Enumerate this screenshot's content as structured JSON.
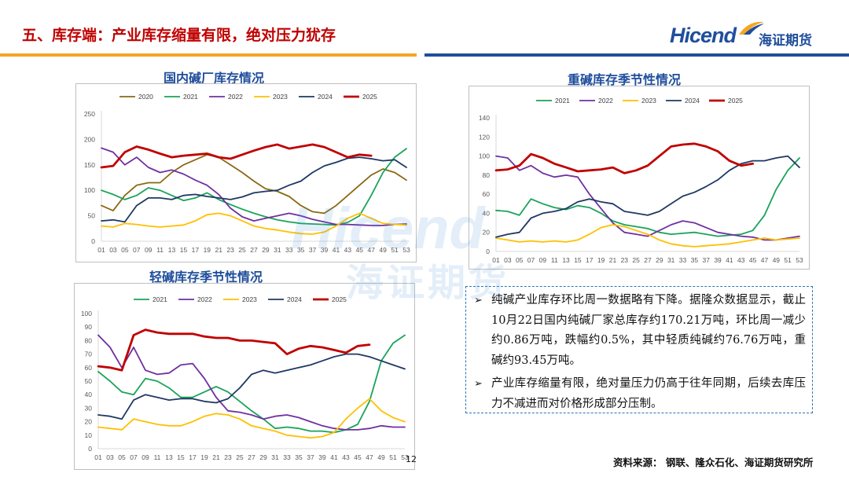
{
  "header": {
    "title": "五、库存端：产业库存缩量有限，绝对压力犹存",
    "logo_en": "Hicend",
    "logo_cn": "海证期货",
    "colors": {
      "title": "#c00000",
      "brand": "#1f4e9c",
      "band_orange": "#f5a623",
      "band_blue": "#1f4e9c"
    }
  },
  "watermark": {
    "en": "Hicend",
    "cn": "海证期货"
  },
  "text_panel": {
    "bullets": [
      "纯碱产业库存环比周一数据略有下降。据隆众数据显示，截止10月22日国内纯碱厂家总库存约170.21万吨，环比周一减少约0.86万吨，跌幅约0.5%，其中轻质纯碱约76.76万吨，重碱约93.45万吨。",
      "产业库存缩量有限，绝对量压力仍高于往年同期，后续去库压力不减进而对价格形成部分压制。"
    ]
  },
  "footer": {
    "source": "资料来源：  钢联、隆众石化、海证期货研究所",
    "page": "12"
  },
  "chart_data": [
    {
      "id": "domestic",
      "type": "line",
      "title": "国内碱厂库存情况",
      "x": [
        1,
        3,
        5,
        7,
        9,
        11,
        13,
        15,
        17,
        19,
        21,
        23,
        25,
        27,
        29,
        31,
        33,
        35,
        37,
        39,
        41,
        43,
        45,
        47,
        49,
        51,
        53
      ],
      "x_ticks": [
        "01",
        "03",
        "05",
        "07",
        "09",
        "11",
        "13",
        "15",
        "17",
        "19",
        "21",
        "23",
        "25",
        "27",
        "29",
        "31",
        "33",
        "35",
        "37",
        "39",
        "41",
        "43",
        "45",
        "47",
        "49",
        "51",
        "53"
      ],
      "ylim": [
        0,
        250
      ],
      "y_ticks": [
        0,
        50,
        100,
        150,
        200,
        250
      ],
      "series": [
        {
          "name": "2020",
          "color": "#8b6914",
          "values": [
            70,
            60,
            90,
            110,
            115,
            115,
            135,
            150,
            160,
            170,
            165,
            150,
            135,
            118,
            103,
            98,
            88,
            70,
            58,
            55,
            70,
            90,
            110,
            130,
            142,
            135,
            120
          ]
        },
        {
          "name": "2021",
          "color": "#1aa35a",
          "values": [
            100,
            92,
            82,
            90,
            105,
            100,
            90,
            80,
            85,
            95,
            82,
            72,
            63,
            55,
            48,
            42,
            38,
            35,
            34,
            33,
            32,
            37,
            50,
            90,
            135,
            165,
            182
          ]
        },
        {
          "name": "2022",
          "color": "#7030a0",
          "values": [
            183,
            175,
            150,
            165,
            145,
            135,
            140,
            132,
            120,
            110,
            92,
            65,
            48,
            40,
            45,
            50,
            55,
            50,
            43,
            38,
            33,
            33,
            32,
            31,
            31,
            33,
            34
          ]
        },
        {
          "name": "2023",
          "color": "#ffc000",
          "values": [
            30,
            28,
            35,
            33,
            30,
            28,
            30,
            32,
            40,
            52,
            55,
            50,
            40,
            30,
            25,
            22,
            18,
            15,
            14,
            18,
            30,
            45,
            55,
            45,
            35,
            33,
            32
          ]
        },
        {
          "name": "2024",
          "color": "#1f3864",
          "values": [
            40,
            42,
            38,
            70,
            85,
            85,
            82,
            90,
            92,
            88,
            85,
            82,
            87,
            95,
            98,
            100,
            110,
            118,
            135,
            148,
            155,
            163,
            165,
            162,
            158,
            160,
            145
          ]
        },
        {
          "name": "2025",
          "color": "#c00000",
          "values": [
            145,
            148,
            175,
            186,
            180,
            172,
            165,
            168,
            170,
            172,
            165,
            162,
            170,
            178,
            185,
            190,
            182,
            186,
            190,
            185,
            175,
            165,
            170,
            168,
            null,
            null,
            null
          ]
        }
      ]
    },
    {
      "id": "heavy",
      "type": "line",
      "title": "重碱库存季节性情况",
      "x": [
        1,
        3,
        5,
        7,
        9,
        11,
        13,
        15,
        17,
        19,
        21,
        23,
        25,
        27,
        29,
        31,
        33,
        35,
        37,
        39,
        41,
        43,
        45,
        47,
        49,
        51,
        53
      ],
      "x_ticks": [
        "01",
        "03",
        "05",
        "07",
        "09",
        "11",
        "13",
        "15",
        "17",
        "19",
        "21",
        "23",
        "25",
        "27",
        "29",
        "31",
        "33",
        "35",
        "37",
        "39",
        "41",
        "43",
        "45",
        "47",
        "49",
        "51",
        "53"
      ],
      "ylim": [
        0,
        140
      ],
      "y_ticks": [
        0,
        20,
        40,
        60,
        80,
        100,
        120,
        140
      ],
      "series": [
        {
          "name": "2021",
          "color": "#1aa35a",
          "values": [
            43,
            42,
            38,
            55,
            50,
            46,
            44,
            48,
            46,
            40,
            32,
            28,
            26,
            24,
            20,
            18,
            19,
            20,
            18,
            16,
            17,
            18,
            22,
            38,
            65,
            85,
            98
          ]
        },
        {
          "name": "2022",
          "color": "#7030a0",
          "values": [
            100,
            98,
            85,
            90,
            82,
            78,
            80,
            78,
            60,
            45,
            30,
            20,
            18,
            16,
            22,
            28,
            32,
            30,
            25,
            20,
            18,
            16,
            15,
            12,
            12,
            14,
            16
          ]
        },
        {
          "name": "2023",
          "color": "#ffc000",
          "values": [
            14,
            12,
            10,
            11,
            10,
            11,
            10,
            12,
            18,
            25,
            28,
            26,
            22,
            18,
            12,
            8,
            6,
            5,
            6,
            7,
            8,
            10,
            12,
            14,
            12,
            13,
            14
          ]
        },
        {
          "name": "2024",
          "color": "#1f3864",
          "values": [
            15,
            18,
            20,
            35,
            40,
            42,
            45,
            52,
            55,
            52,
            50,
            42,
            40,
            38,
            42,
            50,
            58,
            62,
            68,
            75,
            85,
            92,
            95,
            95,
            98,
            100,
            88
          ]
        },
        {
          "name": "2025",
          "color": "#c00000",
          "values": [
            85,
            86,
            90,
            102,
            98,
            92,
            88,
            84,
            85,
            86,
            88,
            82,
            85,
            90,
            100,
            110,
            112,
            113,
            110,
            105,
            95,
            90,
            92,
            null,
            null,
            null,
            null
          ]
        }
      ]
    },
    {
      "id": "light",
      "type": "line",
      "title": "轻碱库存季节性情况",
      "x": [
        1,
        3,
        5,
        7,
        9,
        11,
        13,
        15,
        17,
        19,
        21,
        23,
        25,
        27,
        29,
        31,
        33,
        35,
        37,
        39,
        41,
        43,
        45,
        47,
        49,
        51,
        53
      ],
      "x_ticks": [
        "01",
        "03",
        "05",
        "07",
        "09",
        "11",
        "13",
        "15",
        "17",
        "19",
        "21",
        "23",
        "25",
        "27",
        "29",
        "31",
        "33",
        "35",
        "37",
        "39",
        "41",
        "43",
        "45",
        "47",
        "49",
        "51",
        "53"
      ],
      "ylim": [
        0,
        100
      ],
      "y_ticks": [
        0,
        10,
        20,
        30,
        40,
        50,
        60,
        70,
        80,
        90,
        100
      ],
      "series": [
        {
          "name": "2021",
          "color": "#1aa35a",
          "values": [
            57,
            50,
            42,
            40,
            52,
            50,
            45,
            38,
            38,
            42,
            46,
            42,
            35,
            28,
            22,
            15,
            16,
            15,
            13,
            13,
            12,
            14,
            18,
            35,
            65,
            78,
            84
          ]
        },
        {
          "name": "2022",
          "color": "#7030a0",
          "values": [
            84,
            75,
            60,
            75,
            58,
            55,
            56,
            62,
            63,
            52,
            38,
            28,
            27,
            25,
            22,
            24,
            25,
            23,
            20,
            17,
            15,
            14,
            14,
            15,
            17,
            16,
            16
          ]
        },
        {
          "name": "2023",
          "color": "#ffc000",
          "values": [
            16,
            15,
            14,
            22,
            20,
            18,
            17,
            17,
            20,
            24,
            26,
            25,
            22,
            17,
            15,
            13,
            10,
            9,
            8,
            9,
            12,
            22,
            30,
            37,
            28,
            23,
            20
          ]
        },
        {
          "name": "2024",
          "color": "#1f3864",
          "values": [
            25,
            24,
            22,
            36,
            40,
            38,
            36,
            37,
            37,
            35,
            34,
            37,
            45,
            55,
            58,
            56,
            58,
            60,
            62,
            65,
            68,
            70,
            70,
            68,
            65,
            62,
            59
          ]
        },
        {
          "name": "2025",
          "color": "#c00000",
          "values": [
            61,
            60,
            58,
            84,
            88,
            86,
            85,
            85,
            85,
            83,
            82,
            82,
            80,
            80,
            79,
            78,
            70,
            74,
            76,
            75,
            73,
            71,
            76,
            77,
            null,
            null,
            null
          ]
        }
      ]
    }
  ]
}
